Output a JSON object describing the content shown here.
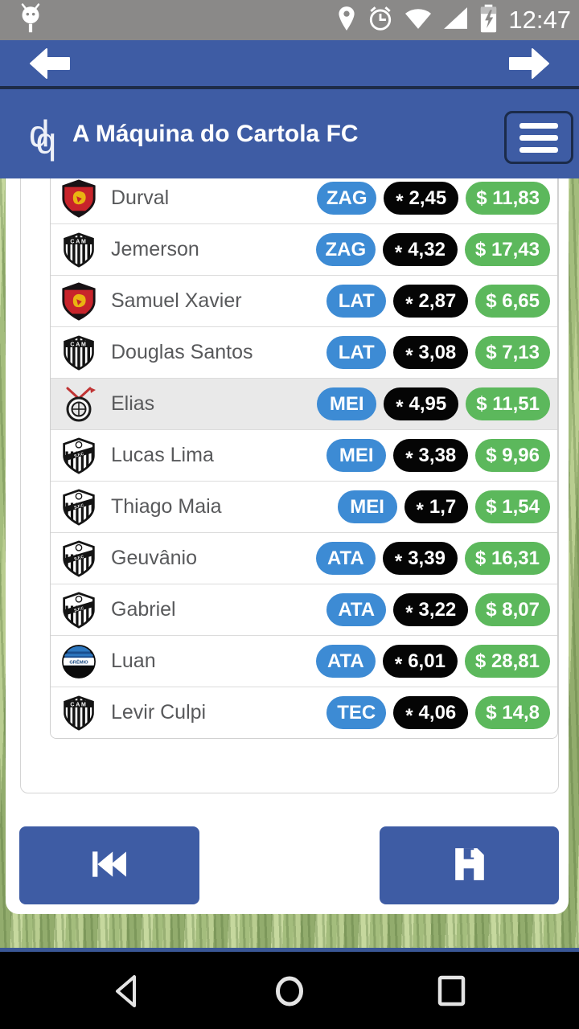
{
  "status_bar": {
    "time": "12:47",
    "icons": [
      "android-figure-icon",
      "location-icon",
      "alarm-icon",
      "wifi-icon",
      "cell-signal-icon",
      "battery-charging-icon"
    ]
  },
  "browser_bar": {
    "back_icon": "back-arrow-icon",
    "forward_icon": "forward-arrow-icon"
  },
  "header": {
    "logo_text_d": "d",
    "logo_text_q": "q",
    "title": "A Máquina do Cartola FC",
    "menu_icon": "hamburger-menu-icon"
  },
  "players": [
    {
      "name": "Durval",
      "team": "sport",
      "position": "ZAG",
      "rating": "* 2,45",
      "price": "$ 11,83",
      "highlight": false
    },
    {
      "name": "Jemerson",
      "team": "atletico-mg",
      "position": "ZAG",
      "rating": "* 4,32",
      "price": "$ 17,43",
      "highlight": false
    },
    {
      "name": "Samuel Xavier",
      "team": "sport",
      "position": "LAT",
      "rating": "* 2,87",
      "price": "$ 6,65",
      "highlight": false
    },
    {
      "name": "Douglas Santos",
      "team": "atletico-mg",
      "position": "LAT",
      "rating": "* 3,08",
      "price": "$ 7,13",
      "highlight": false
    },
    {
      "name": "Elias",
      "team": "corinthians",
      "position": "MEI",
      "rating": "* 4,95",
      "price": "$ 11,51",
      "highlight": true
    },
    {
      "name": "Lucas Lima",
      "team": "santos",
      "position": "MEI",
      "rating": "* 3,38",
      "price": "$ 9,96",
      "highlight": false
    },
    {
      "name": "Thiago Maia",
      "team": "santos",
      "position": "MEI",
      "rating": "* 1,7",
      "price": "$ 1,54",
      "highlight": false
    },
    {
      "name": "Geuvânio",
      "team": "santos",
      "position": "ATA",
      "rating": "* 3,39",
      "price": "$ 16,31",
      "highlight": false
    },
    {
      "name": "Gabriel",
      "team": "santos",
      "position": "ATA",
      "rating": "* 3,22",
      "price": "$ 8,07",
      "highlight": false
    },
    {
      "name": "Luan",
      "team": "gremio",
      "position": "ATA",
      "rating": "* 6,01",
      "price": "$ 28,81",
      "highlight": false
    },
    {
      "name": "Levir Culpi",
      "team": "atletico-mg",
      "position": "TEC",
      "rating": "* 4,06",
      "price": "$ 14,8",
      "highlight": false
    }
  ],
  "footer": {
    "left_button_icon": "skip-to-start-icon",
    "right_button_icon": "save-floppy-icon"
  },
  "android_nav": {
    "back_icon": "nav-back-icon",
    "home_icon": "nav-home-icon",
    "recents_icon": "nav-recents-icon"
  },
  "colors": {
    "app_blue": "#3e5ca4",
    "separator_navy": "#1d2b47",
    "statusbar_gray": "#8a8988",
    "position_badge_blue": "#3d8bd4",
    "rating_badge_black": "#050505",
    "price_badge_green": "#5cb85c",
    "row_highlight": "#e9e9e9",
    "android_nav_black": "#000000"
  }
}
